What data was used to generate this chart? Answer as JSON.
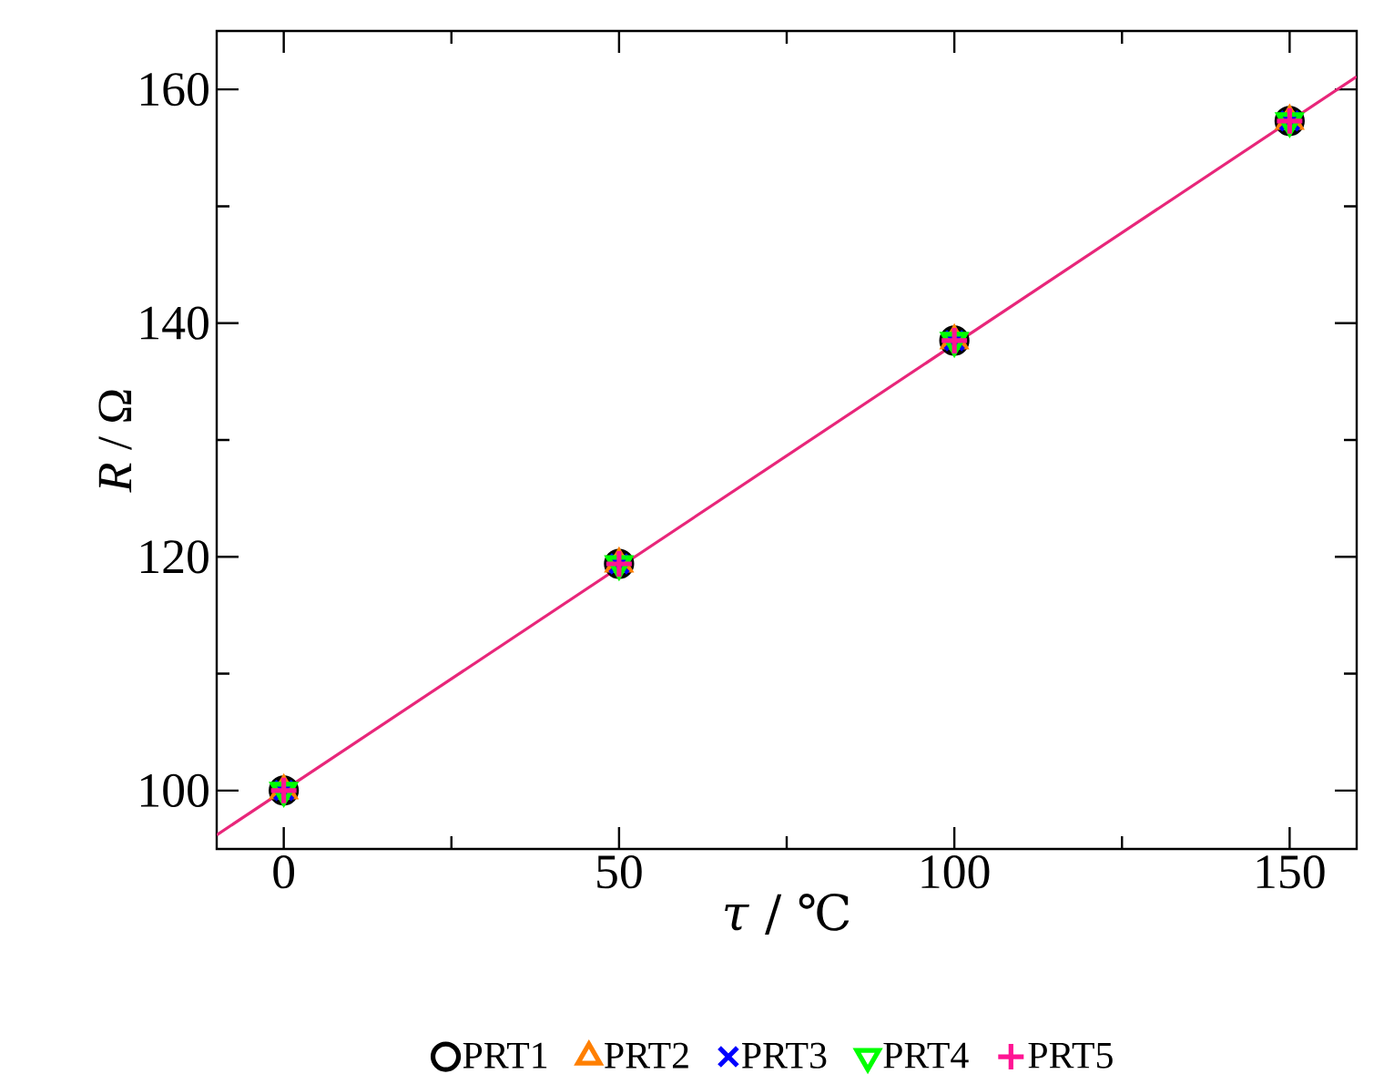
{
  "chart_data": {
    "type": "scatter",
    "xlabel": "*τ* / ℃",
    "ylabel": "*R* / Ω",
    "xlim": [
      -10,
      160
    ],
    "ylim": [
      95,
      165
    ],
    "xticks": [
      0,
      50,
      100,
      150
    ],
    "yticks": [
      100,
      120,
      140,
      160
    ],
    "legend": "bottom",
    "grid": false,
    "series": [
      {
        "name": "PRT1",
        "color": "#000000",
        "marker": "circle",
        "x": [
          0,
          50,
          100,
          150
        ],
        "values": [
          100.0,
          119.4,
          138.5,
          157.3
        ]
      },
      {
        "name": "PRT2",
        "color": "#ff7f00",
        "marker": "triangle",
        "x": [
          0,
          50,
          100,
          150
        ],
        "values": [
          100.0,
          119.4,
          138.5,
          157.3
        ]
      },
      {
        "name": "PRT3",
        "color": "#0000ff",
        "marker": "cross",
        "x": [
          0,
          50,
          100,
          150
        ],
        "values": [
          100.0,
          119.4,
          138.5,
          157.3
        ]
      },
      {
        "name": "PRT4",
        "color": "#00ff00",
        "marker": "triangle_down",
        "x": [
          0,
          50,
          100,
          150
        ],
        "values": [
          100.0,
          119.4,
          138.5,
          157.3
        ]
      },
      {
        "name": "PRT5",
        "color": "#ff1493",
        "marker": "plus",
        "x": [
          0,
          50,
          100,
          150
        ],
        "values": [
          100.0,
          119.4,
          138.5,
          157.3
        ]
      },
      {
        "type": "line",
        "color": "#e8267a",
        "marker": "none",
        "x": [
          -10,
          160
        ],
        "values": [
          96.2,
          161.1
        ]
      }
    ]
  }
}
